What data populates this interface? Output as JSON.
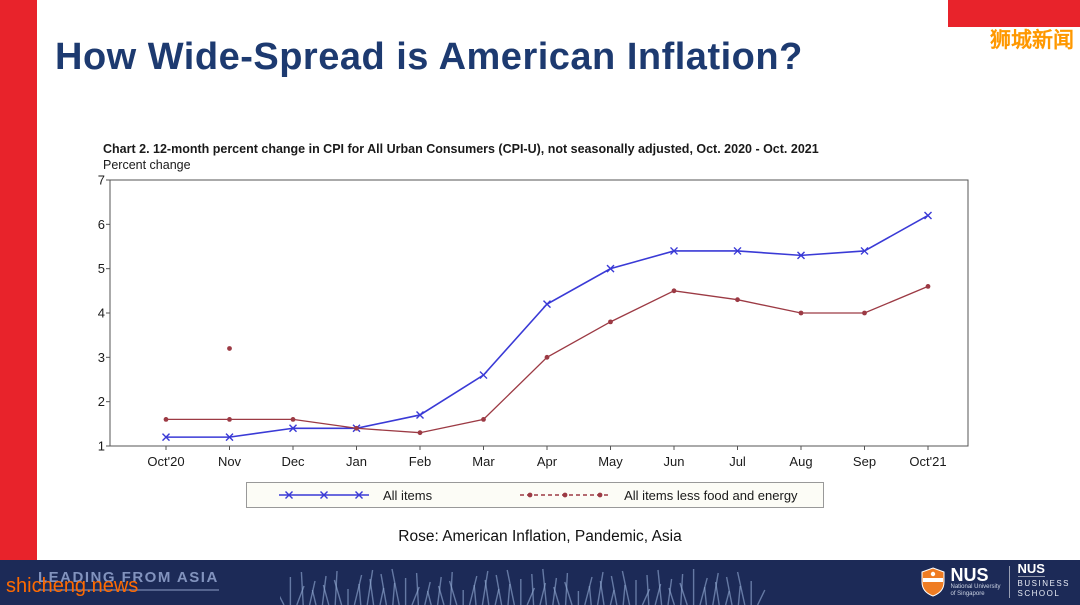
{
  "page": {
    "title": "How Wide-Spread is American Inflation?",
    "caption": "Rose: American Inflation, Pandemic, Asia"
  },
  "watermark": {
    "top_right": "狮城新闻",
    "bottom_left": "shicheng.news"
  },
  "footer": {
    "slogan": "LEADING FROM ASIA",
    "nus": {
      "abbr": "NUS",
      "univ_line1": "National University",
      "univ_line2": "of Singapore",
      "school_abbr": "NUS",
      "school_line1": "BUSINESS",
      "school_line2": "SCHOOL"
    }
  },
  "colors": {
    "accent_red": "#e8232b",
    "title_navy": "#1d3a70",
    "footer_navy": "#1c2a57",
    "watermark_orange": "#ff6a00"
  },
  "chart_data": {
    "type": "line",
    "title": "Chart 2. 12-month percent change in CPI for All Urban Consumers (CPI-U), not seasonally adjusted, Oct. 2020 - Oct. 2021",
    "ylabel_above": "Percent change",
    "categories": [
      "Oct'20",
      "Nov",
      "Dec",
      "Jan",
      "Feb",
      "Mar",
      "Apr",
      "May",
      "Jun",
      "Jul",
      "Aug",
      "Sep",
      "Oct'21"
    ],
    "ylim": [
      1,
      7
    ],
    "yticks": [
      1,
      2,
      3,
      4,
      5,
      6,
      7
    ],
    "grid": false,
    "legend_position": "bottom",
    "series": [
      {
        "name": "All items",
        "color": "#3a3ad6",
        "marker": "x",
        "values": [
          1.2,
          1.2,
          1.4,
          1.4,
          1.7,
          2.6,
          4.2,
          5.0,
          5.4,
          5.4,
          5.3,
          5.4,
          6.2
        ]
      },
      {
        "name": "All items less food and energy",
        "color": "#9c3a44",
        "marker": "dot",
        "values": [
          1.6,
          1.6,
          1.6,
          1.4,
          1.3,
          1.6,
          3.0,
          3.8,
          4.5,
          4.3,
          4.0,
          4.0,
          4.6
        ]
      }
    ],
    "stray_points": [
      {
        "series": "All items less food and energy",
        "category": "Nov",
        "value": 3.2
      }
    ]
  }
}
